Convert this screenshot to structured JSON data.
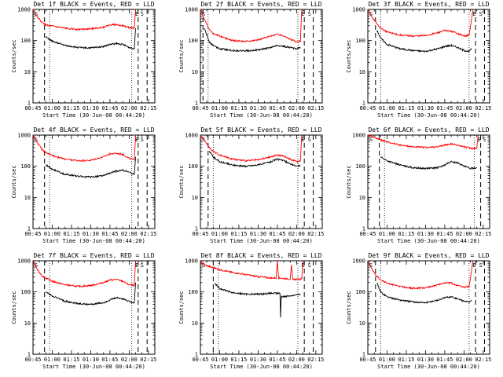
{
  "chart_data": [
    {
      "type": "line",
      "title": "Det 1f BLACK = Events, RED = LLD",
      "xlabel": "Start Time (30-Jun-08 00:44:20)",
      "ylabel": "Counts/sec",
      "y_scale": "log",
      "ylim": [
        1,
        1000
      ],
      "y_ticks": [
        "1",
        "10",
        "100",
        "1000"
      ],
      "xlim_minutes_after_0045": [
        0,
        95
      ],
      "x_ticks": [
        "00:45",
        "01:00",
        "01:15",
        "01:30",
        "01:45",
        "02:00",
        "02:15"
      ],
      "markers": [
        {
          "label": "E",
          "time": "02:06"
        },
        {
          "label": "S",
          "time": "02:10"
        }
      ],
      "series": [
        {
          "name": "Events",
          "color": "#000000",
          "x": [
            "00:55",
            "01:00",
            "01:10",
            "01:20",
            "01:30",
            "01:40",
            "01:45",
            "01:50",
            "01:55",
            "02:00",
            "02:04",
            "02:05"
          ],
          "y": [
            130,
            95,
            70,
            60,
            58,
            65,
            75,
            80,
            75,
            60,
            55,
            250
          ]
        },
        {
          "name": "LLD",
          "color": "#ff0000",
          "x": [
            "00:45",
            "00:48",
            "00:52",
            "00:55",
            "01:00",
            "01:10",
            "01:20",
            "01:30",
            "01:40",
            "01:45",
            "01:50",
            "01:55",
            "02:00",
            "02:04",
            "02:05"
          ],
          "y": [
            1000,
            600,
            380,
            320,
            290,
            250,
            230,
            240,
            270,
            320,
            330,
            300,
            260,
            250,
            1000
          ]
        }
      ]
    },
    {
      "type": "line",
      "title": "Det 2f BLACK = Events, RED = LLD",
      "xlabel": "Start Time (30-Jun-08 00:44:20)",
      "ylabel": "Counts/sec",
      "y_scale": "log",
      "ylim": [
        1,
        1000
      ],
      "y_ticks": [
        "1",
        "10",
        "100",
        "1000"
      ],
      "xlim_minutes_after_0045": [
        0,
        95
      ],
      "x_ticks": [
        "00:45",
        "01:00",
        "01:15",
        "01:30",
        "01:45",
        "02:00",
        "02:15"
      ],
      "markers": [
        {
          "label": "E",
          "time": "02:05"
        },
        {
          "label": "S",
          "time": "02:10"
        }
      ],
      "series": [
        {
          "name": "Events",
          "color": "#000000",
          "x": [
            "00:48",
            "00:52",
            "00:55",
            "01:00",
            "01:10",
            "01:20",
            "01:30",
            "01:40",
            "01:45",
            "01:50",
            "01:55",
            "02:00",
            "02:03"
          ],
          "y": [
            250,
            90,
            70,
            55,
            48,
            47,
            50,
            60,
            70,
            65,
            60,
            55,
            60
          ]
        },
        {
          "name": "LLD",
          "color": "#ff0000",
          "x": [
            "00:45",
            "00:48",
            "00:52",
            "00:55",
            "01:00",
            "01:10",
            "01:20",
            "01:30",
            "01:40",
            "01:45",
            "01:50",
            "01:55",
            "02:00",
            "02:03",
            "02:04"
          ],
          "y": [
            1000,
            500,
            220,
            170,
            140,
            100,
            95,
            105,
            140,
            160,
            140,
            110,
            90,
            95,
            1000
          ]
        }
      ]
    },
    {
      "type": "line",
      "title": "Det 3f BLACK = Events, RED = LLD",
      "xlabel": "Start Time (30-Jun-08 00:44:20)",
      "ylabel": "Counts/sec",
      "y_scale": "log",
      "ylim": [
        1,
        1000
      ],
      "y_ticks": [
        "1",
        "10",
        "100",
        "1000"
      ],
      "xlim_minutes_after_0045": [
        0,
        95
      ],
      "x_ticks": [
        "00:45",
        "01:00",
        "01:15",
        "01:30",
        "01:45",
        "02:00",
        "02:15"
      ],
      "markers": [
        {
          "label": "E",
          "time": "02:08"
        },
        {
          "label": "S",
          "time": "02:13"
        }
      ],
      "series": [
        {
          "name": "Events",
          "color": "#000000",
          "x": [
            "00:52",
            "00:55",
            "01:00",
            "01:10",
            "01:20",
            "01:30",
            "01:40",
            "01:45",
            "01:50",
            "01:55",
            "02:00",
            "02:04",
            "02:06"
          ],
          "y": [
            220,
            120,
            75,
            55,
            48,
            45,
            55,
            65,
            70,
            60,
            48,
            45,
            55
          ]
        },
        {
          "name": "LLD",
          "color": "#ff0000",
          "x": [
            "00:45",
            "00:48",
            "00:52",
            "00:55",
            "01:00",
            "01:10",
            "01:20",
            "01:30",
            "01:40",
            "01:45",
            "01:50",
            "01:55",
            "02:00",
            "02:04",
            "02:07"
          ],
          "y": [
            1000,
            600,
            350,
            250,
            190,
            150,
            140,
            145,
            180,
            210,
            200,
            170,
            140,
            150,
            1000
          ]
        }
      ]
    },
    {
      "type": "line",
      "title": "Det 4f BLACK = Events, RED = LLD",
      "xlabel": "Start Time (30-Jun-08 00:44:20)",
      "ylabel": "Counts/sec",
      "y_scale": "log",
      "ylim": [
        1,
        1000
      ],
      "y_ticks": [
        "1",
        "10",
        "100",
        "1000"
      ],
      "xlim_minutes_after_0045": [
        0,
        95
      ],
      "x_ticks": [
        "00:45",
        "01:00",
        "01:15",
        "01:30",
        "01:45",
        "02:00",
        "02:15"
      ],
      "markers": [
        {
          "label": "E",
          "time": "02:06"
        },
        {
          "label": "S",
          "time": "02:10"
        }
      ],
      "series": [
        {
          "name": "Events",
          "color": "#000000",
          "x": [
            "00:55",
            "01:00",
            "01:10",
            "01:20",
            "01:30",
            "01:40",
            "01:45",
            "01:50",
            "01:55",
            "02:00",
            "02:04",
            "02:05"
          ],
          "y": [
            110,
            80,
            55,
            48,
            45,
            50,
            60,
            70,
            75,
            65,
            55,
            200
          ]
        },
        {
          "name": "LLD",
          "color": "#ff0000",
          "x": [
            "00:45",
            "00:48",
            "00:52",
            "00:55",
            "01:00",
            "01:10",
            "01:20",
            "01:30",
            "01:40",
            "01:45",
            "01:50",
            "01:55",
            "02:00",
            "02:04",
            "02:05"
          ],
          "y": [
            1000,
            600,
            350,
            280,
            220,
            170,
            150,
            155,
            200,
            250,
            260,
            240,
            180,
            160,
            1000
          ]
        }
      ]
    },
    {
      "type": "line",
      "title": "Det 5f BLACK = Events, RED = LLD",
      "xlabel": "Start Time (30-Jun-08 00:44:20)",
      "ylabel": "Counts/sec",
      "y_scale": "log",
      "ylim": [
        1,
        1000
      ],
      "y_ticks": [
        "1",
        "10",
        "100",
        "1000"
      ],
      "xlim_minutes_after_0045": [
        0,
        95
      ],
      "x_ticks": [
        "00:45",
        "01:00",
        "01:15",
        "01:30",
        "01:45",
        "02:00",
        "02:15"
      ],
      "markers": [
        {
          "label": "E",
          "time": "02:05"
        },
        {
          "label": "S",
          "time": "02:10"
        }
      ],
      "series": [
        {
          "name": "Events",
          "color": "#000000",
          "x": [
            "00:52",
            "00:55",
            "01:00",
            "01:10",
            "01:20",
            "01:30",
            "01:40",
            "01:45",
            "01:50",
            "01:55",
            "02:00",
            "02:03"
          ],
          "y": [
            300,
            200,
            140,
            110,
            100,
            110,
            140,
            170,
            150,
            120,
            100,
            105
          ]
        },
        {
          "name": "LLD",
          "color": "#ff0000",
          "x": [
            "00:45",
            "00:48",
            "00:52",
            "00:55",
            "01:00",
            "01:10",
            "01:20",
            "01:30",
            "01:40",
            "01:45",
            "01:50",
            "01:55",
            "02:00",
            "02:03",
            "02:04"
          ],
          "y": [
            1000,
            700,
            400,
            300,
            230,
            170,
            150,
            160,
            200,
            230,
            210,
            170,
            140,
            150,
            1000
          ]
        }
      ]
    },
    {
      "type": "line",
      "title": "Det 6f BLACK = Events, RED = LLD",
      "xlabel": "Start Time (30-Jun-08 00:44:20)",
      "ylabel": "Counts/sec",
      "y_scale": "log",
      "ylim": [
        1,
        1000
      ],
      "y_ticks": [
        "1",
        "10",
        "100",
        "1000"
      ],
      "xlim_minutes_after_0045": [
        0,
        95
      ],
      "x_ticks": [
        "00:45",
        "01:00",
        "01:15",
        "01:30",
        "01:45",
        "02:00",
        "02:15"
      ],
      "markers": [
        {
          "label": "E",
          "time": "02:12"
        },
        {
          "label": "S",
          "time": "02:16"
        }
      ],
      "series": [
        {
          "name": "Events",
          "color": "#000000",
          "x": [
            "00:55",
            "01:00",
            "01:10",
            "01:20",
            "01:30",
            "01:40",
            "01:45",
            "01:50",
            "01:55",
            "02:00",
            "02:05",
            "02:10"
          ],
          "y": [
            200,
            150,
            110,
            90,
            85,
            90,
            110,
            140,
            130,
            100,
            85,
            90
          ]
        },
        {
          "name": "LLD",
          "color": "#ff0000",
          "x": [
            "00:45",
            "00:48",
            "00:52",
            "00:55",
            "01:00",
            "01:10",
            "01:20",
            "01:30",
            "01:40",
            "01:45",
            "01:50",
            "01:55",
            "02:00",
            "02:05",
            "02:10",
            "02:11"
          ],
          "y": [
            1000,
            900,
            800,
            700,
            600,
            480,
            420,
            400,
            420,
            480,
            520,
            480,
            420,
            380,
            380,
            1000
          ]
        }
      ]
    },
    {
      "type": "line",
      "title": "Det 7f BLACK = Events, RED = LLD",
      "xlabel": "Start Time (30-Jun-08 00:44:20)",
      "ylabel": "Counts/sec",
      "y_scale": "log",
      "ylim": [
        1,
        1000
      ],
      "y_ticks": [
        "1",
        "10",
        "100",
        "1000"
      ],
      "xlim_minutes_after_0045": [
        0,
        95
      ],
      "x_ticks": [
        "00:45",
        "01:00",
        "01:15",
        "01:30",
        "01:45",
        "02:00",
        "02:15"
      ],
      "markers": [
        {
          "label": "E",
          "time": "02:06"
        },
        {
          "label": "S",
          "time": "02:10"
        }
      ],
      "series": [
        {
          "name": "Events",
          "color": "#000000",
          "x": [
            "00:55",
            "01:00",
            "01:10",
            "01:20",
            "01:30",
            "01:40",
            "01:45",
            "01:50",
            "01:55",
            "02:00",
            "02:04",
            "02:05"
          ],
          "y": [
            100,
            75,
            50,
            42,
            40,
            45,
            55,
            65,
            60,
            50,
            45,
            200
          ]
        },
        {
          "name": "LLD",
          "color": "#ff0000",
          "x": [
            "00:45",
            "00:48",
            "00:52",
            "00:55",
            "01:00",
            "01:10",
            "01:20",
            "01:30",
            "01:40",
            "01:45",
            "01:50",
            "01:55",
            "02:00",
            "02:04",
            "02:05"
          ],
          "y": [
            1000,
            550,
            330,
            280,
            220,
            170,
            150,
            160,
            200,
            240,
            250,
            220,
            170,
            160,
            1000
          ]
        }
      ]
    },
    {
      "type": "line",
      "title": "Det 8f BLACK = Events, RED = LLD",
      "xlabel": "Start Time (30-Jun-08 00:44:20)",
      "ylabel": "Counts/sec",
      "y_scale": "log",
      "ylim": [
        1,
        1000
      ],
      "y_ticks": [
        "1",
        "10",
        "100",
        "1000"
      ],
      "xlim_minutes_after_0045": [
        0,
        95
      ],
      "x_ticks": [
        "00:45",
        "01:00",
        "01:15",
        "01:30",
        "01:45",
        "02:00",
        "02:15"
      ],
      "markers": [
        {
          "label": "E",
          "time": "02:05"
        },
        {
          "label": "S",
          "time": "02:10"
        }
      ],
      "series": [
        {
          "name": "Events",
          "color": "#000000",
          "x": [
            "00:56",
            "01:00",
            "01:10",
            "01:20",
            "01:30",
            "01:40",
            "01:47",
            "01:47.5",
            "01:48",
            "01:55",
            "02:00",
            "02:03"
          ],
          "y": [
            190,
            130,
            95,
            85,
            85,
            90,
            90,
            15,
            70,
            75,
            80,
            85
          ]
        },
        {
          "name": "LLD",
          "color": "#ff0000",
          "x": [
            "00:45",
            "00:48",
            "00:52",
            "00:55",
            "01:00",
            "01:10",
            "01:20",
            "01:30",
            "01:40",
            "01:44",
            "01:45",
            "01:46",
            "01:50",
            "01:55",
            "01:56",
            "01:57",
            "02:00",
            "02:04",
            "02:05"
          ],
          "y": [
            1000,
            750,
            650,
            600,
            520,
            420,
            360,
            310,
            280,
            280,
            1000,
            280,
            270,
            260,
            700,
            260,
            250,
            260,
            1000
          ]
        }
      ]
    },
    {
      "type": "line",
      "title": "Det 9f BLACK = Events, RED = LLD",
      "xlabel": "Start Time (30-Jun-08 00:44:20)",
      "ylabel": "Counts/sec",
      "y_scale": "log",
      "ylim": [
        1,
        1000
      ],
      "y_ticks": [
        "1",
        "10",
        "100",
        "1000"
      ],
      "xlim_minutes_after_0045": [
        0,
        95
      ],
      "x_ticks": [
        "00:45",
        "01:00",
        "01:15",
        "01:30",
        "01:45",
        "02:00",
        "02:15"
      ],
      "markers": [
        {
          "label": "E",
          "time": "02:08"
        },
        {
          "label": "S",
          "time": "02:13"
        }
      ],
      "series": [
        {
          "name": "Events",
          "color": "#000000",
          "x": [
            "00:52",
            "00:55",
            "01:00",
            "01:10",
            "01:20",
            "01:30",
            "01:40",
            "01:45",
            "01:50",
            "01:55",
            "02:00",
            "02:04",
            "02:06"
          ],
          "y": [
            200,
            100,
            70,
            55,
            48,
            45,
            55,
            65,
            70,
            60,
            50,
            48,
            55
          ]
        },
        {
          "name": "LLD",
          "color": "#ff0000",
          "x": [
            "00:45",
            "00:48",
            "00:52",
            "00:55",
            "01:00",
            "01:10",
            "01:20",
            "01:30",
            "01:40",
            "01:45",
            "01:50",
            "01:55",
            "02:00",
            "02:04",
            "02:07"
          ],
          "y": [
            1000,
            550,
            320,
            250,
            190,
            150,
            130,
            135,
            170,
            200,
            190,
            160,
            140,
            150,
            1000
          ]
        }
      ]
    }
  ]
}
